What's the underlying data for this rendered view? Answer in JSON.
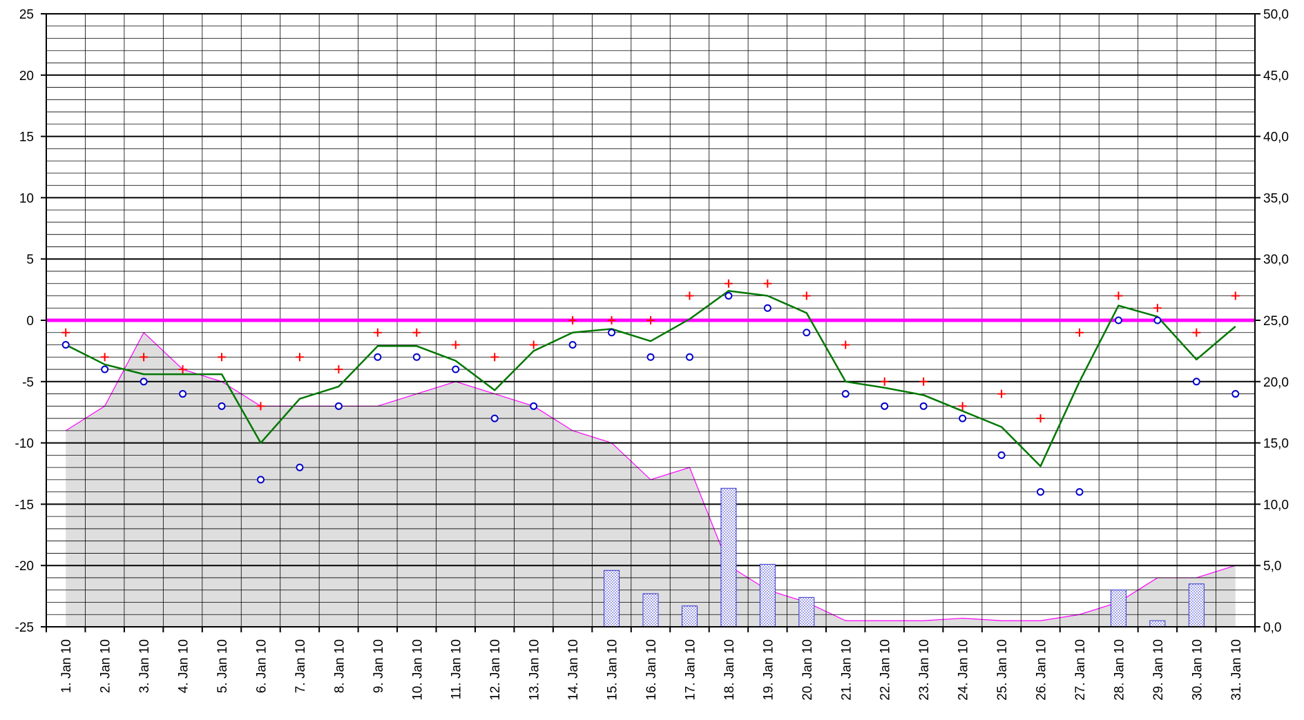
{
  "chart_data": {
    "type": "line",
    "title": "",
    "categories": [
      "1. Jan 10",
      "2. Jan 10",
      "3. Jan 10",
      "4. Jan 10",
      "5. Jan 10",
      "6. Jan 10",
      "7. Jan 10",
      "8. Jan 10",
      "9. Jan 10",
      "10. Jan 10",
      "11. Jan 10",
      "12. Jan 10",
      "13. Jan 10",
      "14. Jan 10",
      "15. Jan 10",
      "16. Jan 10",
      "17. Jan 10",
      "18. Jan 10",
      "19. Jan 10",
      "20. Jan 10",
      "21. Jan 10",
      "22. Jan 10",
      "23. Jan 10",
      "24. Jan 10",
      "25. Jan 10",
      "26. Jan 10",
      "27. Jan 10",
      "28. Jan 10",
      "29. Jan 10",
      "30. Jan 10",
      "31. Jan 10"
    ],
    "y_left": {
      "ylim": [
        -25,
        25
      ],
      "ticks": [
        "25",
        "20",
        "15",
        "10",
        "5",
        "0",
        "-5",
        "-10",
        "-15",
        "-20",
        "-25"
      ]
    },
    "y_right": {
      "ylim": [
        0,
        50
      ],
      "ticks": [
        "50,0",
        "45,0",
        "40,0",
        "35,0",
        "30,0",
        "25,0",
        "20,0",
        "15,0",
        "10,0",
        "5,0",
        "0,0"
      ]
    },
    "reference_line": {
      "axis": "left",
      "value": 0,
      "color": "#ff00ff"
    },
    "grid": true,
    "series": [
      {
        "axis": "right",
        "kind": "area",
        "color": "#ff00ff",
        "fill": "#dedede",
        "values": [
          16,
          18,
          24,
          21,
          20,
          18,
          18,
          18,
          18,
          19,
          20,
          19,
          18,
          16,
          15,
          12,
          13,
          5,
          3,
          2,
          0.5,
          0.5,
          0.5,
          0.7,
          0.5,
          0.5,
          1,
          2,
          4,
          4,
          5
        ]
      },
      {
        "axis": "right",
        "kind": "bar",
        "color": "#3333cc",
        "values": [
          0,
          0,
          0,
          0,
          0,
          0,
          0,
          0,
          0,
          0,
          0,
          0,
          0,
          0,
          4.6,
          2.7,
          1.7,
          11.3,
          5.1,
          2.4,
          0,
          0,
          0,
          0,
          0,
          0,
          0,
          3,
          0.5,
          3.5,
          0
        ]
      },
      {
        "axis": "left",
        "kind": "line",
        "color": "#007700",
        "values": [
          -2,
          -3.6,
          -4.4,
          -4.4,
          -4.4,
          -10,
          -6.4,
          -5.4,
          -2.1,
          -2.1,
          -3.3,
          -5.7,
          -2.5,
          -1,
          -0.7,
          -1.7,
          0.1,
          2.4,
          2,
          0.6,
          -5,
          -5.5,
          -6.1,
          -7.4,
          -8.7,
          -11.9,
          -5,
          1.2,
          0.3,
          -3.2,
          -0.5
        ]
      },
      {
        "axis": "left",
        "kind": "marker",
        "marker": "plus",
        "color": "#ff0000",
        "values": [
          -1,
          -3,
          -3,
          -4,
          -3,
          -7,
          -3,
          -4,
          -1,
          -1,
          -2,
          -3,
          -2,
          0,
          0,
          0,
          2,
          3,
          3,
          2,
          -2,
          -5,
          -5,
          -7,
          -6,
          -8,
          -1,
          2,
          1,
          -1,
          2
        ]
      },
      {
        "axis": "left",
        "kind": "marker",
        "marker": "circle",
        "color": "#0000cc",
        "values": [
          -2,
          -4,
          -5,
          -6,
          -7,
          -13,
          -12,
          -7,
          -3,
          -3,
          -4,
          -8,
          -7,
          -2,
          -1,
          -3,
          -3,
          2,
          1,
          -1,
          -6,
          -7,
          -7,
          -8,
          -11,
          -14,
          -14,
          0,
          0,
          -5,
          -6
        ]
      }
    ]
  }
}
